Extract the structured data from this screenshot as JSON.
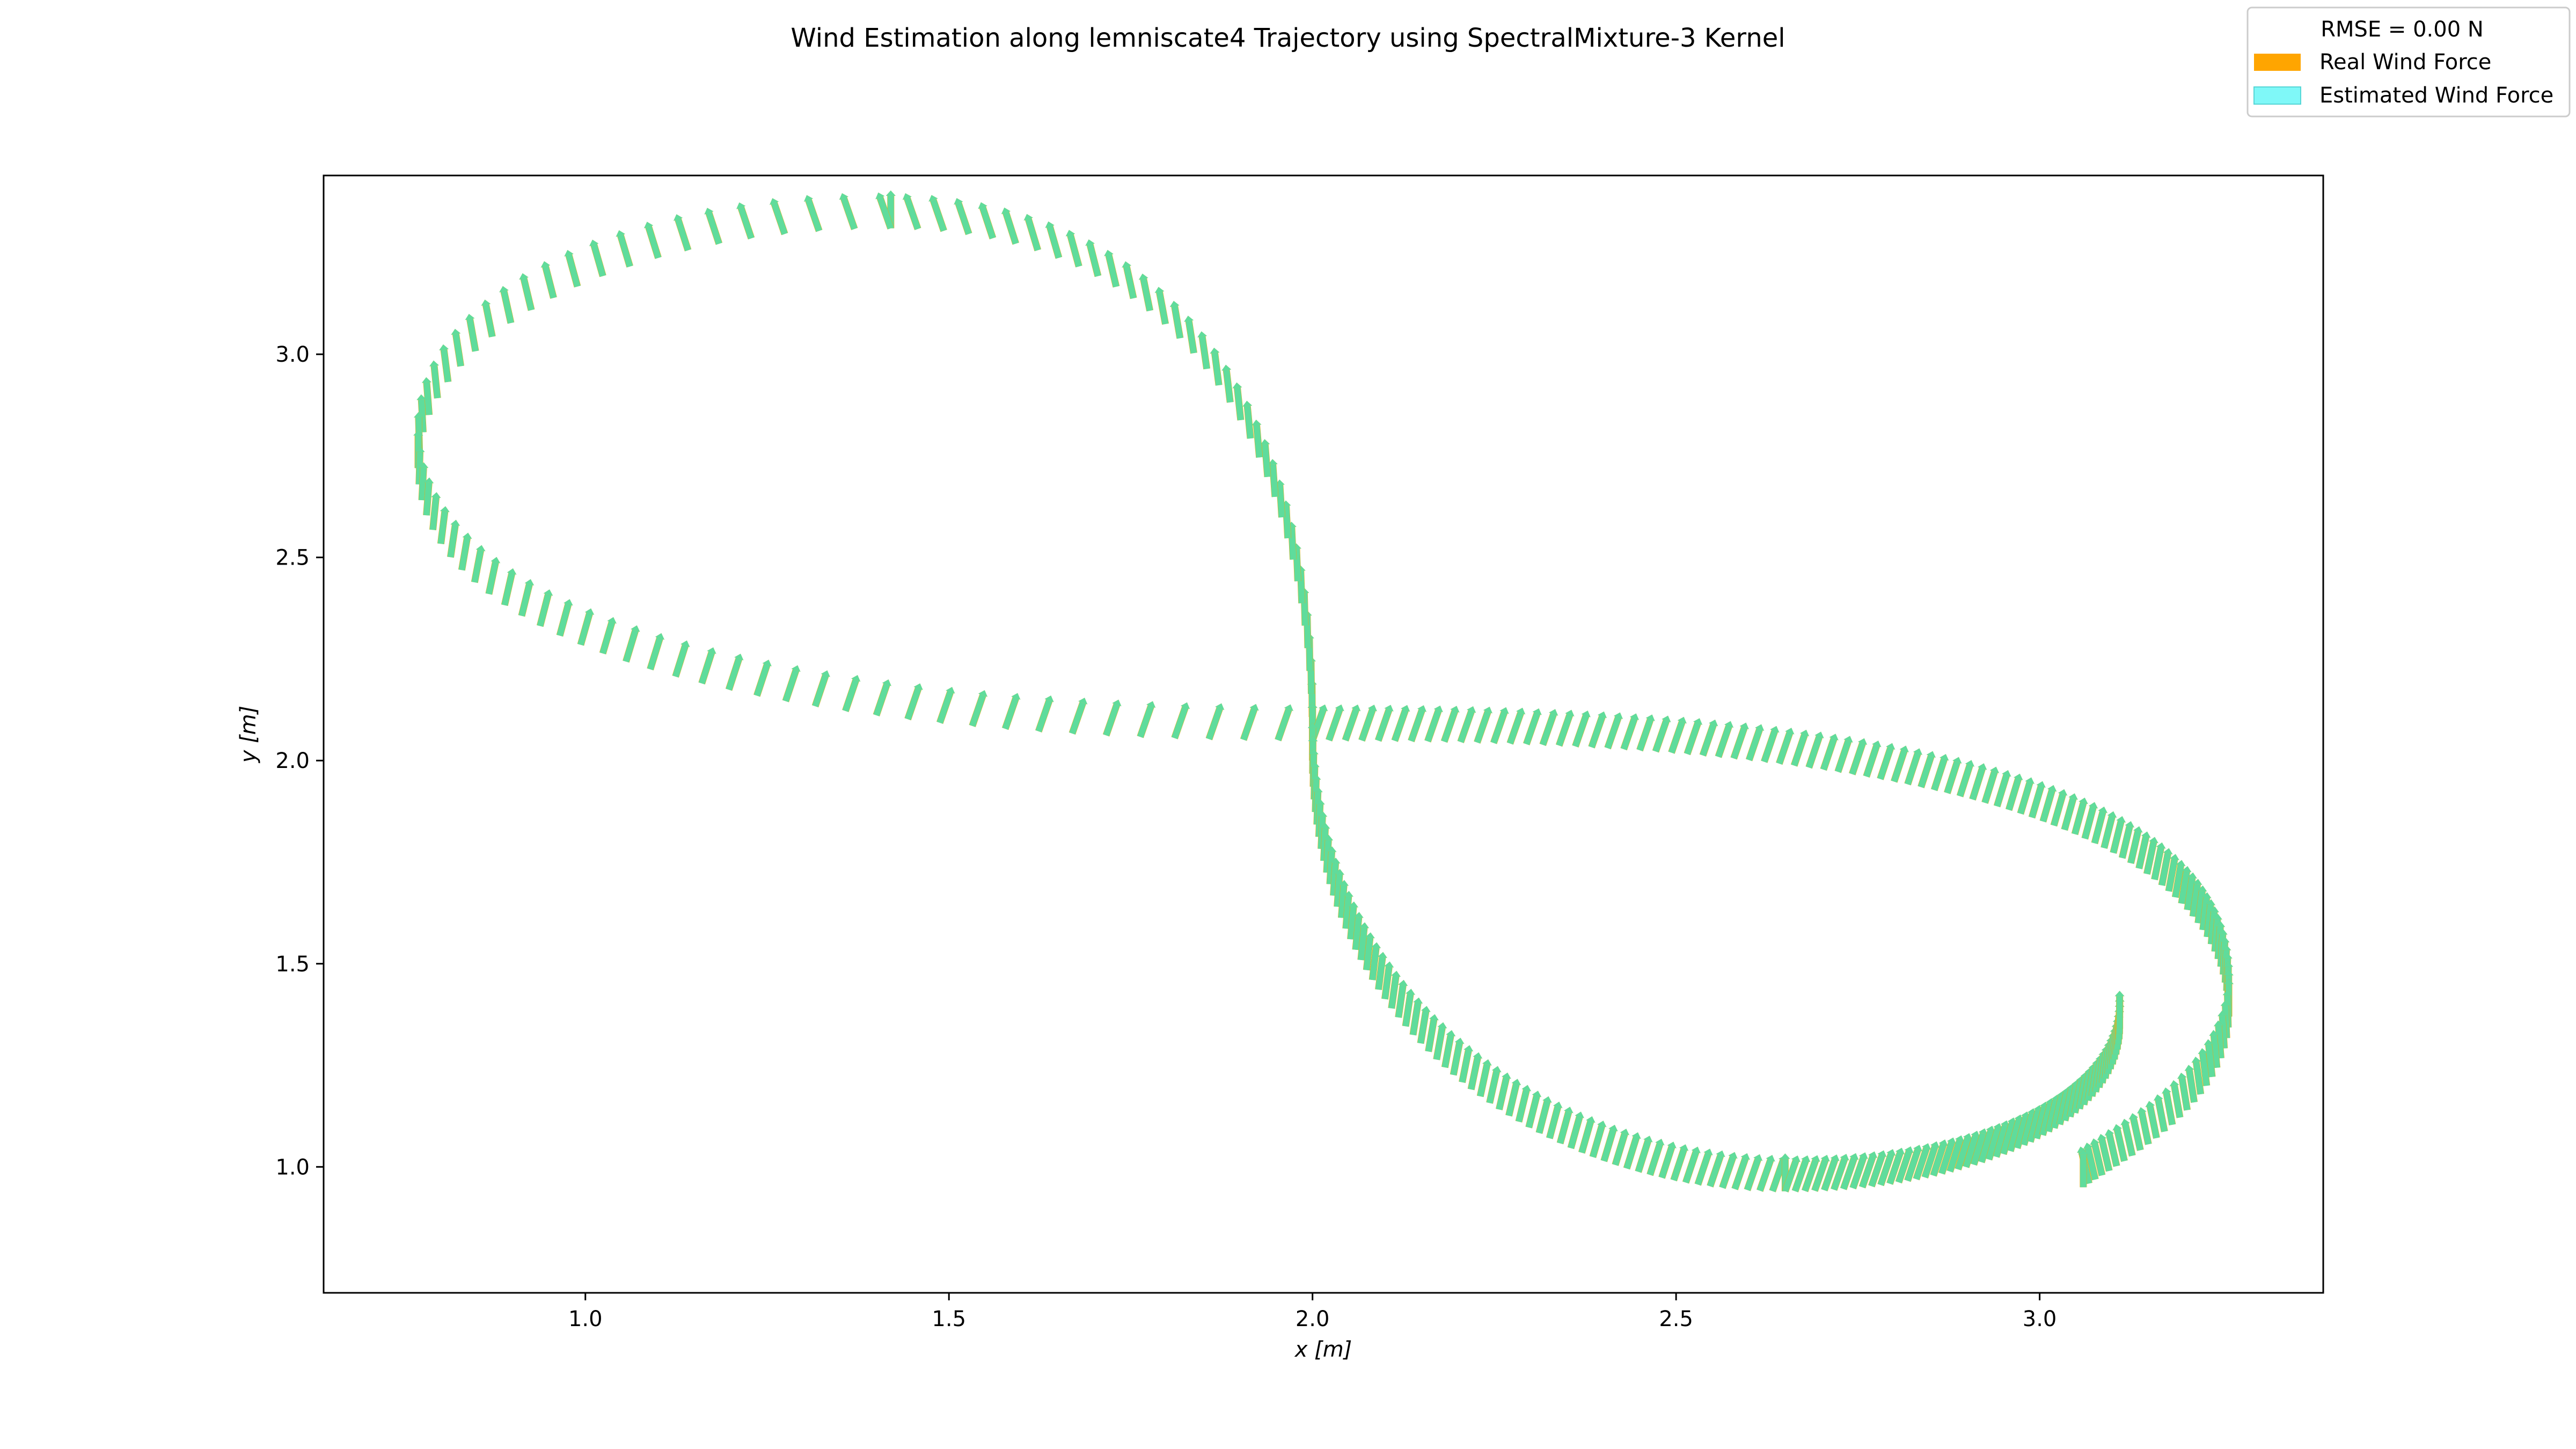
{
  "chart_data": {
    "type": "quiver",
    "title": "Wind Estimation along lemniscate4 Trajectory using SpectralMixture-3 Kernel",
    "xlabel": "x [m]",
    "ylabel": "y [m]",
    "xlim": [
      0.64,
      3.39
    ],
    "ylim": [
      0.69,
      3.44
    ],
    "xticks": [
      1.0,
      1.5,
      2.0,
      2.5,
      3.0
    ],
    "xtick_labels": [
      "1.0",
      "1.5",
      "2.0",
      "2.5",
      "3.0"
    ],
    "yticks": [
      1.0,
      1.5,
      2.0,
      2.5,
      3.0
    ],
    "ytick_labels": [
      "1.0",
      "1.5",
      "2.0",
      "2.5",
      "3.0"
    ],
    "grid": false,
    "legend": {
      "placement": "top-right (outside axes)",
      "title": "RMSE = 0.00 N",
      "entries": [
        {
          "label": "Real Wind Force",
          "color": "#ffa500"
        },
        {
          "label": "Estimated Wind Force",
          "color": "#7ff8f8"
        }
      ]
    },
    "trajectory": {
      "shape": "lemniscate (figure-eight) centred near x=2.0, y=2.0",
      "x_range": [
        0.77,
        3.26
      ],
      "y_range": [
        0.94,
        3.31
      ],
      "segments": [
        {
          "name": "upper-left lobe, right side going up",
          "from": [
            2.0,
            2.05
          ],
          "to": [
            1.42,
            3.31
          ]
        },
        {
          "name": "upper-left lobe top going left",
          "from": [
            1.42,
            3.31
          ],
          "to": [
            0.77,
            2.72
          ]
        },
        {
          "name": "upper-left lobe bottom going right",
          "from": [
            0.77,
            2.72
          ],
          "to": [
            2.0,
            2.05
          ]
        },
        {
          "name": "horizontal crossing to the right lobe",
          "from": [
            2.0,
            2.05
          ],
          "to": [
            3.26,
            1.37
          ]
        },
        {
          "name": "descending stroke on the left of the lower-right lobe",
          "from": [
            2.0,
            2.0
          ],
          "to": [
            2.65,
            0.94
          ]
        },
        {
          "name": "bottom of the lower-right lobe",
          "from": [
            2.65,
            0.94
          ],
          "to": [
            3.11,
            1.34
          ]
        }
      ]
    },
    "arrow_direction": "mostly upward (+y), tilted with the local curve direction",
    "arrow_length_approx_m": 0.08,
    "series": [
      {
        "name": "Real Wind Force",
        "color": "#ffa500"
      },
      {
        "name": "Estimated Wind Force",
        "color": "#7ff8f8"
      }
    ],
    "overlap_color": "#5fdc9c"
  }
}
